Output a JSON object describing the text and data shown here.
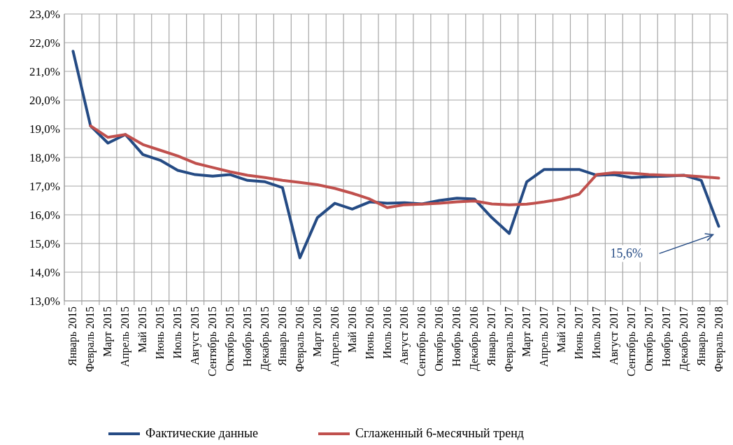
{
  "chart_data": {
    "type": "line",
    "categories": [
      "Январь 2015",
      "Февраль 2015",
      "Март 2015",
      "Апрель 2015",
      "Май 2015",
      "Июнь 2015",
      "Июль 2015",
      "Август 2015",
      "Сентябрь 2015",
      "Октябрь 2015",
      "Ноябрь 2015",
      "Декабрь 2015",
      "Январь 2016",
      "Февраль 2016",
      "Март 2016",
      "Апрель 2016",
      "Май 2016",
      "Июнь 2016",
      "Июль 2016",
      "Август 2016",
      "Сентябрь 2016",
      "Октябрь 2016",
      "Ноябрь 2016",
      "Декабрь 2016",
      "Январь 2017",
      "Февраль 2017",
      "Март 2017",
      "Апрель 2017",
      "Май 2017",
      "Июнь 2017",
      "Июль 2017",
      "Август 2017",
      "Сентябрь 2017",
      "Октябрь 2017",
      "Ноябрь 2017",
      "Декабрь 2017",
      "Январь 2018",
      "Февраль 2018"
    ],
    "series": [
      {
        "name": "Фактические данные",
        "color": "#254b84",
        "values": [
          21.7,
          19.1,
          18.5,
          18.8,
          18.1,
          17.9,
          17.55,
          17.4,
          17.35,
          17.4,
          17.2,
          17.15,
          16.95,
          14.5,
          15.9,
          16.4,
          16.2,
          16.45,
          16.4,
          16.42,
          16.38,
          16.5,
          16.58,
          16.55,
          15.9,
          15.35,
          17.15,
          17.58,
          17.58,
          17.58,
          17.38,
          17.4,
          17.3,
          17.33,
          17.35,
          17.38,
          17.2,
          15.6
        ]
      },
      {
        "name": "Сглаженный 6-месячный тренд",
        "color": "#c0504d",
        "values": [
          null,
          19.1,
          18.7,
          18.8,
          18.45,
          18.25,
          18.05,
          17.8,
          17.65,
          17.5,
          17.38,
          17.3,
          17.2,
          17.13,
          17.05,
          16.92,
          16.75,
          16.55,
          16.25,
          16.35,
          16.37,
          16.4,
          16.45,
          16.48,
          16.38,
          16.35,
          16.37,
          16.45,
          16.55,
          16.72,
          17.4,
          17.47,
          17.45,
          17.4,
          17.38,
          17.37,
          17.33,
          17.28
        ]
      }
    ],
    "ylim": [
      13,
      23
    ],
    "yticks": [
      {
        "value": 13,
        "label": "13,0%"
      },
      {
        "value": 14,
        "label": "14,0%"
      },
      {
        "value": 15,
        "label": "15,0%"
      },
      {
        "value": 16,
        "label": "16,0%"
      },
      {
        "value": 17,
        "label": "17,0%"
      },
      {
        "value": 18,
        "label": "18,0%"
      },
      {
        "value": 19,
        "label": "19,0%"
      },
      {
        "value": 20,
        "label": "20,0%"
      },
      {
        "value": 21,
        "label": "21,0%"
      },
      {
        "value": 22,
        "label": "22,0%"
      },
      {
        "value": 23,
        "label": "23,0%"
      }
    ],
    "grid": true,
    "legend": "bottom",
    "line_style": "solid",
    "marker": "none",
    "annotations": [
      "15,6%"
    ]
  }
}
